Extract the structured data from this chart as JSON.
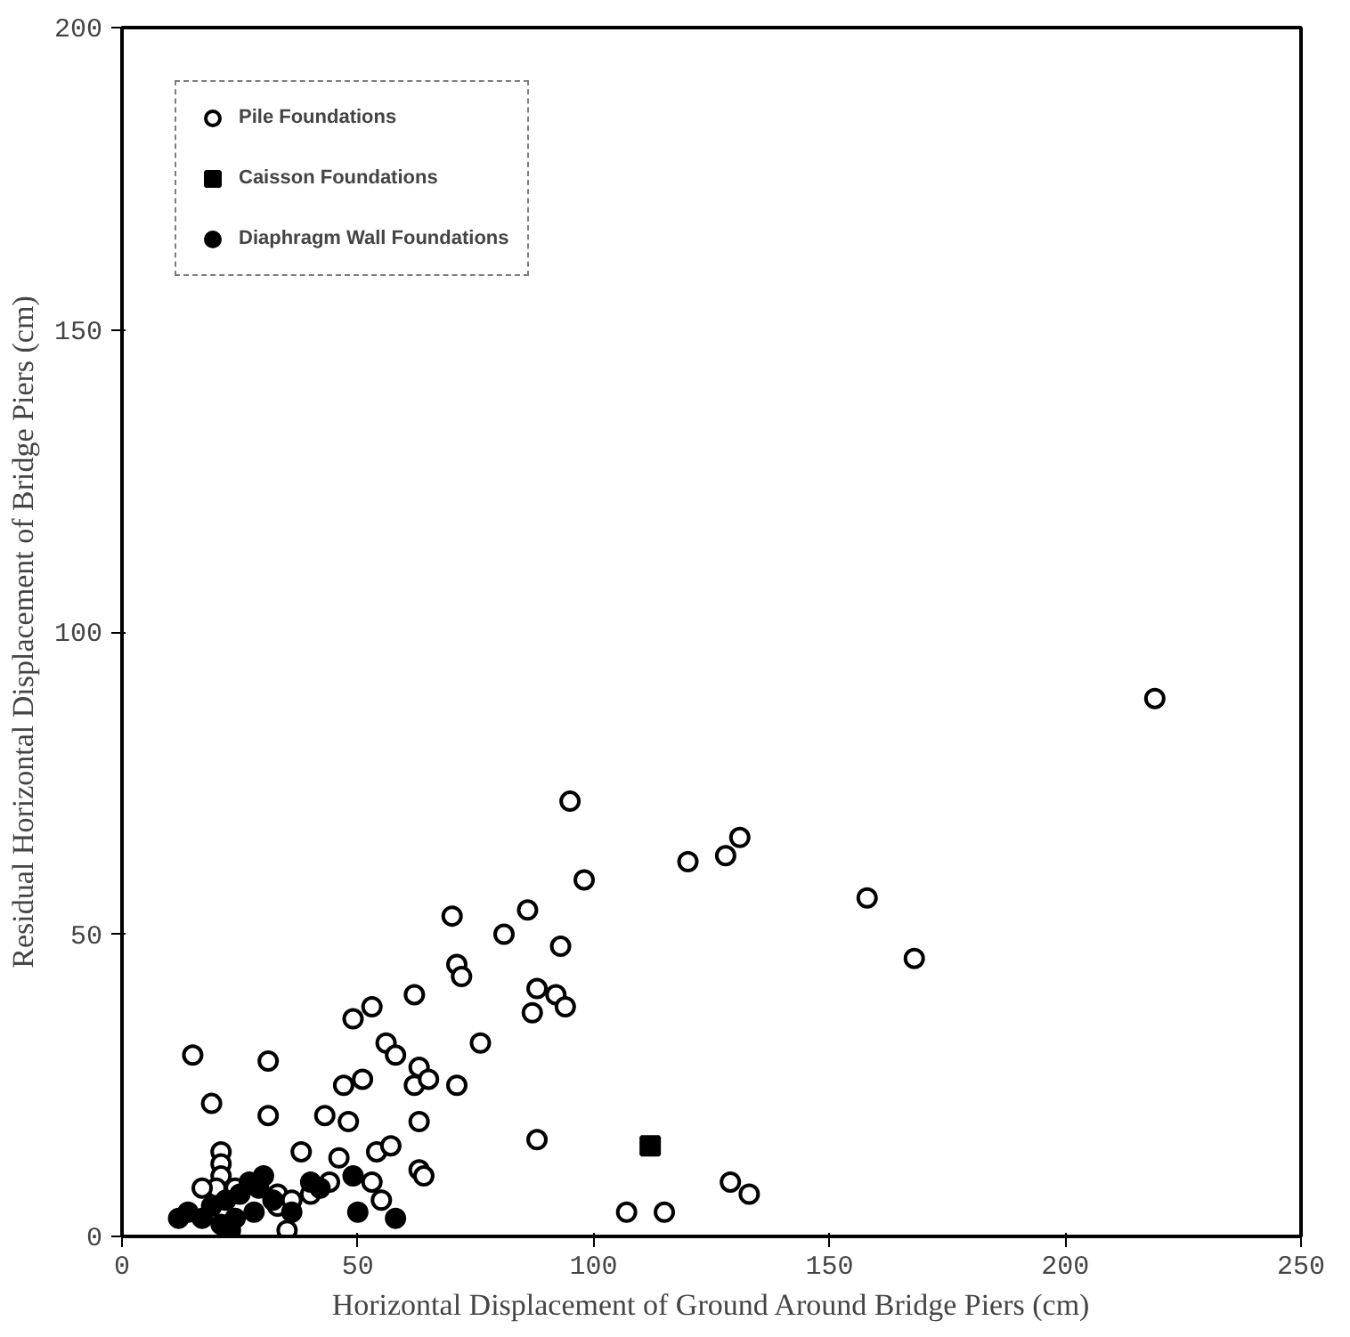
{
  "chart_data": {
    "type": "scatter",
    "xlabel": "Horizontal Displacement of Ground Around Bridge Piers (cm)",
    "ylabel": "Residual Horizontal Displacement of Bridge Piers (cm)",
    "xlim": [
      0,
      250
    ],
    "ylim": [
      0,
      200
    ],
    "xticks": [
      0,
      50,
      100,
      150,
      200,
      250
    ],
    "yticks": [
      0,
      50,
      100,
      150,
      200
    ],
    "grid": false,
    "legend": "top left",
    "series": [
      {
        "name": "Pile Foundations",
        "color": "#ffffff",
        "marker": "circle",
        "x": [
          15,
          19,
          31,
          31,
          21,
          21,
          21,
          20,
          17,
          24,
          33,
          35,
          38,
          40,
          43,
          44,
          46,
          48,
          47,
          49,
          51,
          53,
          56,
          54,
          55,
          53,
          57,
          58,
          62,
          62,
          63,
          63,
          63,
          64,
          65,
          70,
          71,
          72,
          71,
          76,
          81,
          86,
          87,
          88,
          92,
          93,
          95,
          94,
          98,
          88,
          107,
          115,
          120,
          128,
          131,
          129,
          133,
          158,
          168,
          219,
          33,
          36
        ],
        "values": [
          30,
          22,
          29,
          20,
          14,
          12,
          10,
          8,
          8,
          8,
          5,
          1,
          14,
          7,
          20,
          9,
          13,
          19,
          25,
          36,
          26,
          38,
          32,
          14,
          6,
          9,
          15,
          30,
          40,
          25,
          28,
          19,
          11,
          10,
          26,
          53,
          45,
          43,
          25,
          32,
          50,
          54,
          37,
          41,
          40,
          48,
          72,
          38,
          59,
          16,
          4,
          4,
          62,
          63,
          66,
          9,
          7,
          56,
          46,
          89,
          7,
          6
        ]
      },
      {
        "name": "Caisson Foundations",
        "color": "#000000",
        "marker": "square",
        "x": [
          112
        ],
        "values": [
          15
        ]
      },
      {
        "name": "Diaphragm Wall Foundations",
        "color": "#000000",
        "marker": "circle",
        "x": [
          12,
          14,
          17,
          19,
          21,
          22,
          25,
          27,
          28,
          29,
          30,
          32,
          36,
          40,
          42,
          49,
          50,
          58,
          23,
          24
        ],
        "values": [
          3,
          4,
          3,
          5,
          2,
          6,
          7,
          9,
          4,
          8,
          10,
          6,
          4,
          9,
          8,
          10,
          4,
          3,
          1,
          3
        ]
      }
    ]
  }
}
